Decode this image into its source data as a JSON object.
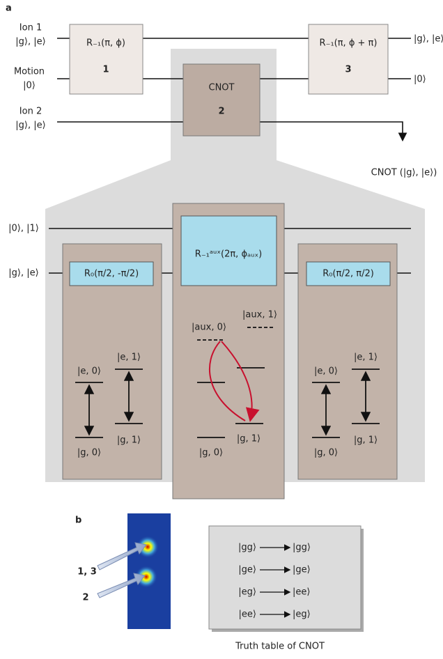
{
  "panel_a": {
    "label": "a",
    "inputs": {
      "ion1_name": "Ion 1",
      "ion1_states": "|g⟩, |e⟩",
      "motion_name": "Motion",
      "motion_state": "|0⟩",
      "ion2_name": "Ion 2",
      "ion2_states": "|g⟩, |e⟩"
    },
    "gates": [
      {
        "op": "R₋₁(π, ϕ)",
        "num": "1"
      },
      {
        "op": "CNOT",
        "num": "2"
      },
      {
        "op": "R₋₁(π, ϕ + π)",
        "num": "3"
      }
    ],
    "outputs": {
      "ion1": "|g⟩, |e⟩",
      "motion": "|0⟩",
      "ion2": "CNOT (|g⟩, |e⟩)"
    },
    "detail": {
      "wire_motion": "|0⟩, |1⟩",
      "wire_ion": "|g⟩, |e⟩",
      "pulses": [
        "R₀(π/2, -π/2)",
        "R₋₁ᵃᵘˣ(2π, ϕₐᵤₓ)",
        "R₀(π/2, π/2)"
      ],
      "panel1_levels": [
        "|e, 0⟩",
        "|e, 1⟩",
        "|g, 0⟩",
        "|g, 1⟩"
      ],
      "panel2_levels": [
        "|aux, 0⟩",
        "|aux, 1⟩",
        "|g, 1⟩",
        "|g, 0⟩"
      ],
      "panel3_levels": [
        "|e, 0⟩",
        "|e, 1⟩",
        "|g, 0⟩",
        "|g, 1⟩"
      ]
    }
  },
  "panel_b": {
    "label": "b",
    "ion_labels": [
      "1, 3",
      "2"
    ],
    "truth_table": {
      "rows": [
        [
          "|gg⟩",
          "|gg⟩"
        ],
        [
          "|ge⟩",
          "|ge⟩"
        ],
        [
          "|eg⟩",
          "|ee⟩"
        ],
        [
          "|ee⟩",
          "|eg⟩"
        ]
      ],
      "caption": "Truth table of CNOT"
    }
  }
}
